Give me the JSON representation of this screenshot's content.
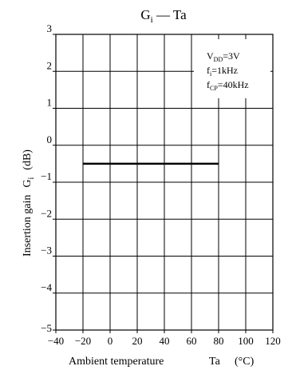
{
  "chart_data": {
    "type": "line",
    "title": {
      "main": "G",
      "sub": "i",
      "rest": " — Ta"
    },
    "xlabel": {
      "text": "Ambient temperature",
      "symbol": "Ta",
      "unit": "(°C)"
    },
    "ylabel": {
      "text": "Insertion gain",
      "symbol": "G",
      "sub": "i",
      "unit": "(dB)"
    },
    "xlim": [
      -40,
      120
    ],
    "ylim": [
      -5,
      3
    ],
    "xticks": [
      -40,
      -20,
      0,
      20,
      40,
      60,
      80,
      100,
      120
    ],
    "yticks": [
      3,
      2,
      1,
      0,
      -1,
      -2,
      -3,
      -4,
      -5
    ],
    "xtick_labels": [
      "−40",
      "−20",
      "0",
      "20",
      "40",
      "60",
      "80",
      "100",
      "120"
    ],
    "ytick_labels": [
      "3",
      "2",
      "1",
      "0",
      "−1",
      "−2",
      "−3",
      "−4",
      "−5"
    ],
    "grid": true,
    "legend_box": {
      "placement": "top-right",
      "lines": [
        {
          "main": "V",
          "sub": "DD",
          "rest": "=3V"
        },
        {
          "main": "f",
          "sub": "i",
          "rest": "=1kHz"
        },
        {
          "main": "f",
          "sub": "CP",
          "rest": "=40kHz"
        }
      ]
    },
    "series": [
      {
        "x": [
          -20,
          80
        ],
        "y": [
          -0.5,
          -0.5
        ],
        "color": "#000000"
      }
    ]
  }
}
